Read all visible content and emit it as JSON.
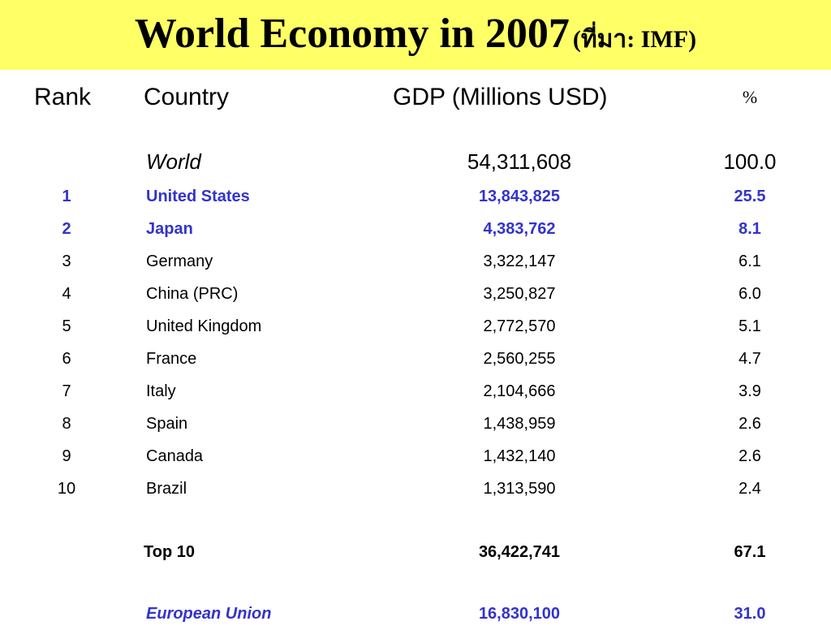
{
  "title": {
    "main": "World Economy in 2007",
    "source": "(ที่มา: IMF)"
  },
  "colors": {
    "banner": "#ffff66",
    "highlight": "#3333cc",
    "text": "#000000"
  },
  "chart_data": {
    "type": "table",
    "columns": [
      "Rank",
      "Country",
      "GDP (Millions USD)",
      "%"
    ],
    "world": {
      "country": "World",
      "gdp": "54,311,608",
      "pct": "100.0"
    },
    "rows": [
      {
        "rank": "1",
        "country": "United States",
        "gdp": "13,843,825",
        "pct": "25.5"
      },
      {
        "rank": "2",
        "country": "Japan",
        "gdp": "4,383,762",
        "pct": "8.1"
      },
      {
        "rank": "3",
        "country": "Germany",
        "gdp": "3,322,147",
        "pct": "6.1"
      },
      {
        "rank": "4",
        "country": "China (PRC)",
        "gdp": "3,250,827",
        "pct": "6.0"
      },
      {
        "rank": "5",
        "country": "United Kingdom",
        "gdp": "2,772,570",
        "pct": "5.1"
      },
      {
        "rank": "6",
        "country": "France",
        "gdp": "2,560,255",
        "pct": "4.7"
      },
      {
        "rank": "7",
        "country": "Italy",
        "gdp": "2,104,666",
        "pct": "3.9"
      },
      {
        "rank": "8",
        "country": "Spain",
        "gdp": "1,438,959",
        "pct": "2.6"
      },
      {
        "rank": "9",
        "country": "Canada",
        "gdp": "1,432,140",
        "pct": "2.6"
      },
      {
        "rank": "10",
        "country": "Brazil",
        "gdp": "1,313,590",
        "pct": "2.4"
      }
    ],
    "top10": {
      "label": "Top 10",
      "gdp": "36,422,741",
      "pct": "67.1"
    },
    "eu": {
      "label": "European Union",
      "gdp": "16,830,100",
      "pct": "31.0"
    }
  }
}
